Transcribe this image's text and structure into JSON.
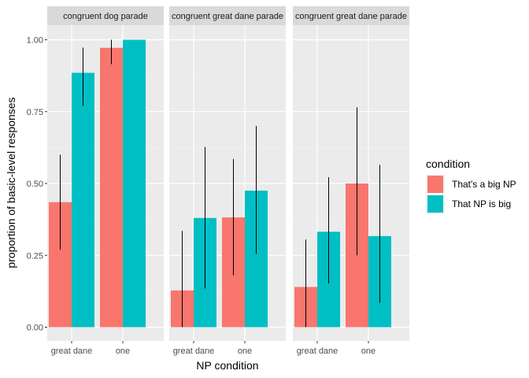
{
  "chart_data": {
    "type": "bar",
    "xlabel": "NP condition",
    "ylabel": "proportion of basic-level responses",
    "ylim": [
      0,
      1.05
    ],
    "yticks": [
      "0.00",
      "0.25",
      "0.50",
      "0.75",
      "1.00"
    ],
    "categories": [
      "great dane",
      "one"
    ],
    "grid": true,
    "legend": {
      "title": "condition",
      "placement": "right",
      "entries": [
        {
          "label": "That's a big NP",
          "color": "#F8766D"
        },
        {
          "label": "That NP is big",
          "color": "#00BFC4"
        }
      ]
    },
    "panels": [
      {
        "strip": "congruent dog parade",
        "series": [
          {
            "name": "That's a big NP",
            "values": [
              0.435,
              0.972
            ],
            "err_low": [
              0.27,
              0.915
            ],
            "err_high": [
              0.6,
              1.0
            ]
          },
          {
            "name": "That NP is big",
            "values": [
              0.885,
              1.0
            ],
            "err_low": [
              0.77,
              1.0
            ],
            "err_high": [
              0.973,
              1.0
            ]
          }
        ]
      },
      {
        "strip": "congruent great dane parade",
        "series": [
          {
            "name": "That's a big NP",
            "values": [
              0.128,
              0.382
            ],
            "err_low": [
              0.0,
              0.18
            ],
            "err_high": [
              0.335,
              0.585
            ]
          },
          {
            "name": "That NP is big",
            "values": [
              0.38,
              0.475
            ],
            "err_low": [
              0.135,
              0.255
            ],
            "err_high": [
              0.627,
              0.7
            ]
          }
        ]
      },
      {
        "strip": "congruent great dane parade",
        "series": [
          {
            "name": "That's a big NP",
            "values": [
              0.14,
              0.5
            ],
            "err_low": [
              0.0,
              0.25
            ],
            "err_high": [
              0.305,
              0.765
            ]
          },
          {
            "name": "That NP is big",
            "values": [
              0.332,
              0.317
            ],
            "err_low": [
              0.152,
              0.085
            ],
            "err_high": [
              0.522,
              0.565
            ]
          }
        ]
      }
    ]
  }
}
